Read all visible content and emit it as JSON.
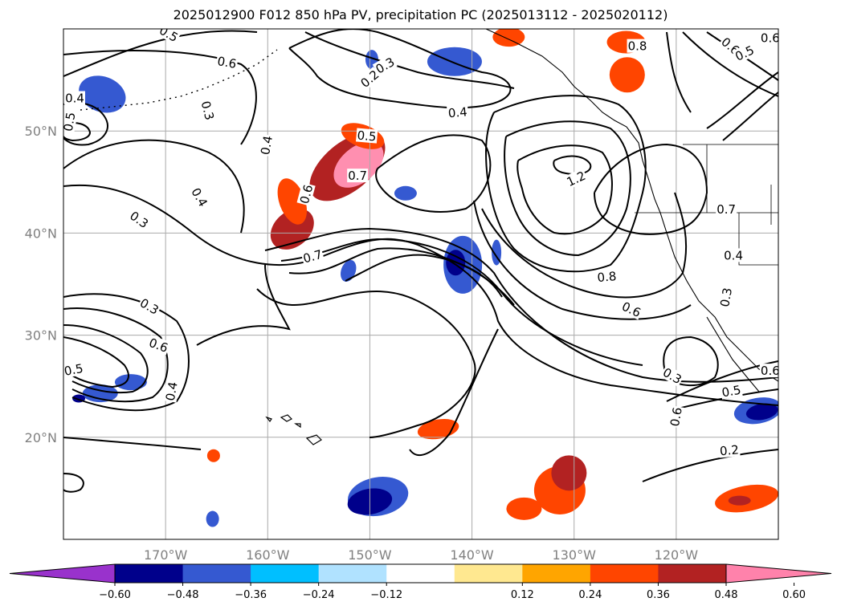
{
  "title": "2025012900 F012 850 hPa PV, precipitation PC (2025013112 - 2025020112)",
  "map": {
    "lon_range": [
      -180,
      -110
    ],
    "lat_range": [
      10,
      60
    ],
    "gridlines": true,
    "lon_ticks": [
      {
        "lon": -170,
        "label": "170°W"
      },
      {
        "lon": -160,
        "label": "160°W"
      },
      {
        "lon": -150,
        "label": "150°W"
      },
      {
        "lon": -140,
        "label": "140°W"
      },
      {
        "lon": -130,
        "label": "130°W"
      },
      {
        "lon": -120,
        "label": "120°W"
      }
    ],
    "lat_ticks": [
      {
        "lat": 50,
        "label": "50°N"
      },
      {
        "lat": 40,
        "label": "40°N"
      },
      {
        "lat": 30,
        "label": "30°N"
      },
      {
        "lat": 20,
        "label": "20°N"
      }
    ]
  },
  "contour_labels": [
    {
      "text": "0.5",
      "lon": -169.7,
      "lat": 59.5,
      "angle": 30
    },
    {
      "text": "0.6",
      "lon": -164,
      "lat": 56.7,
      "angle": 10
    },
    {
      "text": "0.3",
      "lon": -148.5,
      "lat": 56.4,
      "angle": -30
    },
    {
      "text": "0.2",
      "lon": -150,
      "lat": 55.1,
      "angle": -40
    },
    {
      "text": "0.4",
      "lon": -141.4,
      "lat": 51.8,
      "angle": -5
    },
    {
      "text": "0.5",
      "lon": -150.3,
      "lat": 49.5,
      "angle": 5
    },
    {
      "text": "0.7",
      "lon": -151.2,
      "lat": 45.6,
      "angle": 0
    },
    {
      "text": "0.6",
      "lon": -156.2,
      "lat": 43.8,
      "angle": -75
    },
    {
      "text": "0.4",
      "lon": -160.1,
      "lat": 48.6,
      "angle": -80
    },
    {
      "text": "0.3",
      "lon": -165.9,
      "lat": 52.0,
      "angle": 75
    },
    {
      "text": "0.4",
      "lon": -178.9,
      "lat": 53.2,
      "angle": 0
    },
    {
      "text": "0.5",
      "lon": -179.4,
      "lat": 50.9,
      "angle": -80
    },
    {
      "text": "0.4",
      "lon": -166.7,
      "lat": 43.5,
      "angle": 60
    },
    {
      "text": "0.3",
      "lon": -172.6,
      "lat": 41.3,
      "angle": 35
    },
    {
      "text": "0.7",
      "lon": -155.6,
      "lat": 37.7,
      "angle": -15
    },
    {
      "text": "1.2",
      "lon": -129.8,
      "lat": 45.3,
      "angle": -25
    },
    {
      "text": "0.8",
      "lon": -126.8,
      "lat": 35.7,
      "angle": -5
    },
    {
      "text": "0.6",
      "lon": -124.4,
      "lat": 32.5,
      "angle": 25
    },
    {
      "text": "0.8",
      "lon": -123.8,
      "lat": 58.3,
      "angle": 0
    },
    {
      "text": "0.6",
      "lon": -114.7,
      "lat": 58.3,
      "angle": 40
    },
    {
      "text": "0.5",
      "lon": -113.3,
      "lat": 57.6,
      "angle": -25
    },
    {
      "text": "0.6",
      "lon": -110.8,
      "lat": 59.1,
      "angle": 0
    },
    {
      "text": "0.7",
      "lon": -115.1,
      "lat": 42.3,
      "angle": 0
    },
    {
      "text": "0.4",
      "lon": -114.4,
      "lat": 37.8,
      "angle": 0
    },
    {
      "text": "0.3",
      "lon": -115.1,
      "lat": 33.7,
      "angle": -80
    },
    {
      "text": "0.3",
      "lon": -120.4,
      "lat": 26.0,
      "angle": 30
    },
    {
      "text": "0.5",
      "lon": -114.6,
      "lat": 24.5,
      "angle": -10
    },
    {
      "text": "0.6",
      "lon": -120.0,
      "lat": 22.0,
      "angle": -80
    },
    {
      "text": "0.6",
      "lon": -110.8,
      "lat": 26.5,
      "angle": 0
    },
    {
      "text": "0.2",
      "lon": -114.8,
      "lat": 18.7,
      "angle": -5
    },
    {
      "text": "0.3",
      "lon": -171.6,
      "lat": 32.8,
      "angle": 30
    },
    {
      "text": "0.6",
      "lon": -170.7,
      "lat": 29.0,
      "angle": 20
    },
    {
      "text": "0.4",
      "lon": -169.4,
      "lat": 24.5,
      "angle": -80
    },
    {
      "text": "0.5",
      "lon": -179.0,
      "lat": 26.6,
      "angle": -10
    }
  ],
  "precip_patches": [
    {
      "lon": -151.1,
      "lat": 46.7,
      "rx": 36,
      "ry": 22,
      "rot": -40,
      "color": "#ff8fb0"
    },
    {
      "lon": -152.2,
      "lat": 46.5,
      "rx": 56,
      "ry": 30,
      "rot": -40,
      "color": "#b22222"
    },
    {
      "lon": -157.6,
      "lat": 40.4,
      "rx": 30,
      "ry": 22,
      "rot": -40,
      "color": "#b22222"
    },
    {
      "lon": -150.7,
      "lat": 49.5,
      "rx": 28,
      "ry": 14,
      "rot": 20,
      "color": "#ff4500"
    },
    {
      "lon": -140.9,
      "lat": 36.9,
      "rx": 24,
      "ry": 36,
      "rot": 0,
      "color": "#3559d1"
    },
    {
      "lon": -141.6,
      "lat": 37.1,
      "rx": 12,
      "ry": 16,
      "rot": 0,
      "color": "#00008b"
    },
    {
      "lon": -141.7,
      "lat": 56.8,
      "rx": 34,
      "ry": 18,
      "rot": 0,
      "color": "#3559d1"
    },
    {
      "lon": -176.2,
      "lat": 53.6,
      "rx": 30,
      "ry": 22,
      "rot": 20,
      "color": "#3559d1"
    },
    {
      "lon": -150.0,
      "lat": 13.7,
      "rx": 28,
      "ry": 16,
      "rot": -10,
      "color": "#00008b"
    },
    {
      "lon": -149.2,
      "lat": 14.2,
      "rx": 38,
      "ry": 24,
      "rot": -10,
      "color": "#3559d1"
    },
    {
      "lon": -130.5,
      "lat": 16.5,
      "rx": 22,
      "ry": 22,
      "rot": 0,
      "color": "#b22222"
    },
    {
      "lon": -131.4,
      "lat": 14.8,
      "rx": 32,
      "ry": 30,
      "rot": 0,
      "color": "#ff4500"
    },
    {
      "lon": -134.9,
      "lat": 13.0,
      "rx": 22,
      "ry": 14,
      "rot": 0,
      "color": "#ff4500"
    },
    {
      "lon": -113.1,
      "lat": 14.0,
      "rx": 40,
      "ry": 16,
      "rot": -10,
      "color": "#ff4500"
    },
    {
      "lon": -113.8,
      "lat": 13.8,
      "rx": 14,
      "ry": 6,
      "rot": 0,
      "color": "#b22222"
    },
    {
      "lon": -112.0,
      "lat": 22.6,
      "rx": 30,
      "ry": 16,
      "rot": -10,
      "color": "#3559d1"
    },
    {
      "lon": -111.6,
      "lat": 22.5,
      "rx": 20,
      "ry": 10,
      "rot": -10,
      "color": "#00008b"
    },
    {
      "lon": -143.3,
      "lat": 20.8,
      "rx": 26,
      "ry": 12,
      "rot": -10,
      "color": "#ff4500"
    },
    {
      "lon": -176.4,
      "lat": 24.3,
      "rx": 22,
      "ry": 11,
      "rot": 0,
      "color": "#3559d1"
    },
    {
      "lon": -178.5,
      "lat": 23.8,
      "rx": 8,
      "ry": 5,
      "rot": 0,
      "color": "#00008b"
    },
    {
      "lon": -173.4,
      "lat": 25.4,
      "rx": 20,
      "ry": 10,
      "rot": 0,
      "color": "#3559d1"
    },
    {
      "lon": -124.8,
      "lat": 55.5,
      "rx": 22,
      "ry": 22,
      "rot": 0,
      "color": "#ff4500"
    },
    {
      "lon": -124.9,
      "lat": 58.7,
      "rx": 24,
      "ry": 14,
      "rot": 0,
      "color": "#ff4500"
    },
    {
      "lon": -136.4,
      "lat": 59.2,
      "rx": 20,
      "ry": 12,
      "rot": 0,
      "color": "#ff4500"
    },
    {
      "lon": -165.4,
      "lat": 12.0,
      "rx": 8,
      "ry": 10,
      "rot": 0,
      "color": "#3559d1"
    },
    {
      "lon": -165.3,
      "lat": 18.2,
      "rx": 8,
      "ry": 8,
      "rot": 0,
      "color": "#ff4500"
    },
    {
      "lon": -146.5,
      "lat": 43.9,
      "rx": 14,
      "ry": 9,
      "rot": 0,
      "color": "#3559d1"
    },
    {
      "lon": -157.6,
      "lat": 43.1,
      "rx": 16,
      "ry": 30,
      "rot": -20,
      "color": "#ff4500"
    },
    {
      "lon": -149.8,
      "lat": 57.0,
      "rx": 8,
      "ry": 12,
      "rot": 0,
      "color": "#3559d1"
    },
    {
      "lon": -152.1,
      "lat": 36.3,
      "rx": 9,
      "ry": 14,
      "rot": 20,
      "color": "#3559d1"
    },
    {
      "lon": -137.6,
      "lat": 38.1,
      "rx": 6,
      "ry": 16,
      "rot": 0,
      "color": "#3559d1"
    }
  ],
  "colorbar": {
    "ticks": [
      "−0.60",
      "−0.48",
      "−0.36",
      "−0.24",
      "−0.12",
      "0.12",
      "0.24",
      "0.36",
      "0.48",
      "0.60"
    ],
    "under_color": "#9932cc",
    "over_color": "#ff82ab",
    "colors": [
      "#9932cc",
      "#00008b",
      "#3559d1",
      "#00bfff",
      "#b0e2ff",
      "#ffffff",
      "#ffe890",
      "#ffa500",
      "#ff4500",
      "#b22222",
      "#ff82ab"
    ]
  }
}
